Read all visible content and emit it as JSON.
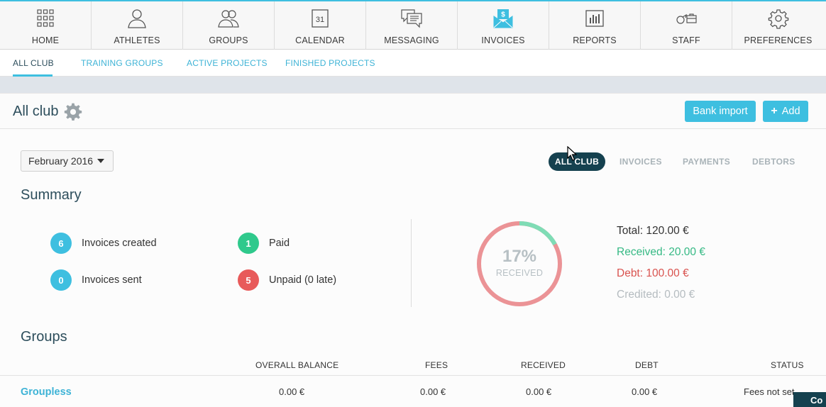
{
  "nav": {
    "items": [
      {
        "label": "HOME",
        "icon": "home-grid-icon"
      },
      {
        "label": "ATHLETES",
        "icon": "athlete-person-icon"
      },
      {
        "label": "GROUPS",
        "icon": "group-people-icon"
      },
      {
        "label": "CALENDAR",
        "icon": "calendar-icon",
        "day": "31"
      },
      {
        "label": "MESSAGING",
        "icon": "messaging-bubbles-icon"
      },
      {
        "label": "INVOICES",
        "icon": "invoice-envelope-icon",
        "symbol": "$",
        "active": true
      },
      {
        "label": "REPORTS",
        "icon": "reports-bar-chart-icon"
      },
      {
        "label": "STAFF",
        "icon": "staff-whistle-briefcase-icon"
      },
      {
        "label": "PREFERENCES",
        "icon": "preferences-gear-icon"
      }
    ]
  },
  "subtabs": {
    "items": [
      {
        "label": "ALL CLUB",
        "active": true
      },
      {
        "label": "TRAINING GROUPS"
      },
      {
        "label": "ACTIVE PROJECTS"
      },
      {
        "label": "FINISHED PROJECTS"
      }
    ]
  },
  "header": {
    "title": "All club",
    "bank_import_label": "Bank import",
    "add_label": "Add"
  },
  "filters": {
    "month": "February 2016",
    "views": [
      "ALL CLUB",
      "INVOICES",
      "PAYMENTS",
      "DEBTORS"
    ],
    "active_view": "ALL CLUB"
  },
  "summary": {
    "title": "Summary",
    "stats": [
      {
        "count": "6",
        "label": "Invoices created",
        "color": "#3ebfe0"
      },
      {
        "count": "0",
        "label": "Invoices sent",
        "color": "#3ebfe0"
      },
      {
        "count": "1",
        "label": "Paid",
        "color": "#2fc98c"
      },
      {
        "count": "5",
        "label": "Unpaid (0 late)",
        "color": "#e85a5a"
      }
    ],
    "donut": {
      "percent_text": "17%",
      "sub_text": "RECEIVED",
      "received_fraction": 0.17,
      "received_color": "#7fdcb5",
      "debt_color": "#eb9396"
    },
    "totals": {
      "total": "Total: 120.00 €",
      "received": "Received: 20.00 €",
      "debt": "Debt: 100.00 €",
      "credited": "Credited: 0.00 €"
    }
  },
  "groups": {
    "title": "Groups",
    "columns": [
      "OVERALL BALANCE",
      "FEES",
      "RECEIVED",
      "DEBT",
      "STATUS"
    ],
    "rows": [
      {
        "name": "Groupless",
        "overall_balance": "0.00 €",
        "fees": "0.00 €",
        "received": "0.00 €",
        "debt": "0.00 €",
        "status": "Fees not set"
      }
    ]
  },
  "chat": {
    "label": "Co"
  },
  "colors": {
    "accent": "#3ebfe0",
    "dark": "#15414f",
    "title": "#2d4e5c"
  }
}
